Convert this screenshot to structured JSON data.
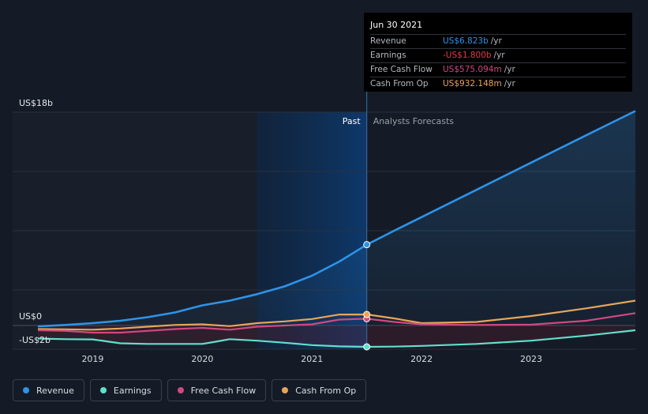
{
  "tooltip": {
    "date": "Jun 30 2021",
    "rows": [
      {
        "label": "Revenue",
        "value": "US$6.823b",
        "unit": "/yr",
        "color": "#2e93e8"
      },
      {
        "label": "Earnings",
        "value": "-US$1.800b",
        "unit": "/yr",
        "color": "#e8394d"
      },
      {
        "label": "Free Cash Flow",
        "value": "US$575.094m",
        "unit": "/yr",
        "color": "#d0487f"
      },
      {
        "label": "Cash From Op",
        "value": "US$932.148m",
        "unit": "/yr",
        "color": "#e6a55c"
      }
    ]
  },
  "legend": [
    {
      "label": "Revenue",
      "color": "#2e93e8"
    },
    {
      "label": "Earnings",
      "color": "#5fe0cc"
    },
    {
      "label": "Free Cash Flow",
      "color": "#d0487f"
    },
    {
      "label": "Cash From Op",
      "color": "#e6a55c"
    }
  ],
  "chart_data": {
    "type": "line",
    "title": "",
    "y_tick_labels": [
      "US$18b",
      "US$0",
      "-US$2b"
    ],
    "ylim": [
      -2,
      18
    ],
    "xlim": [
      2018.5,
      2023.95
    ],
    "x_ticks": [
      2019,
      2020,
      2021,
      2022,
      2023
    ],
    "x_tick_labels": [
      "2019",
      "2020",
      "2021",
      "2022",
      "2023"
    ],
    "past_label": "Past",
    "forecast_label": "Analysts Forecasts",
    "divider_x": 2021.5,
    "past_region_start": 2020.5,
    "units": "US$ billions",
    "series": [
      {
        "name": "Revenue",
        "color": "#2e93e8",
        "x": [
          2018.5,
          2018.75,
          2019.0,
          2019.25,
          2019.5,
          2019.75,
          2020.0,
          2020.25,
          2020.5,
          2020.75,
          2021.0,
          2021.25,
          2021.5,
          2021.75,
          2022.0,
          2022.5,
          2023.0,
          2023.5,
          2023.95
        ],
        "y": [
          -0.07,
          0.05,
          0.2,
          0.4,
          0.7,
          1.1,
          1.7,
          2.1,
          2.65,
          3.3,
          4.2,
          5.4,
          6.823,
          8.0,
          9.15,
          11.45,
          13.75,
          16.05,
          18.1
        ]
      },
      {
        "name": "Earnings",
        "color": "#5fe0cc",
        "x": [
          2018.5,
          2018.75,
          2019.0,
          2019.1,
          2019.25,
          2019.5,
          2019.75,
          2020.0,
          2020.1,
          2020.25,
          2020.5,
          2020.75,
          2021.0,
          2021.25,
          2021.5,
          2021.75,
          2022.0,
          2022.5,
          2023.0,
          2023.5,
          2023.95
        ],
        "y": [
          -1.1,
          -1.15,
          -1.17,
          -1.3,
          -1.5,
          -1.55,
          -1.55,
          -1.55,
          -1.4,
          -1.15,
          -1.28,
          -1.45,
          -1.65,
          -1.76,
          -1.8,
          -1.78,
          -1.72,
          -1.55,
          -1.28,
          -0.85,
          -0.4
        ]
      },
      {
        "name": "Free Cash Flow",
        "color": "#d0487f",
        "x": [
          2018.5,
          2018.75,
          2019.0,
          2019.25,
          2019.5,
          2019.75,
          2020.0,
          2020.25,
          2020.5,
          2020.75,
          2021.0,
          2021.25,
          2021.5,
          2021.75,
          2022.0,
          2022.5,
          2023.0,
          2023.5,
          2023.95
        ],
        "y": [
          -0.4,
          -0.45,
          -0.6,
          -0.6,
          -0.45,
          -0.3,
          -0.2,
          -0.35,
          -0.1,
          0.0,
          0.1,
          0.5,
          0.575,
          0.3,
          0.1,
          0.05,
          0.07,
          0.4,
          1.05
        ]
      },
      {
        "name": "Cash From Op",
        "color": "#e6a55c",
        "x": [
          2018.5,
          2018.75,
          2019.0,
          2019.25,
          2019.5,
          2019.75,
          2020.0,
          2020.25,
          2020.5,
          2020.75,
          2021.0,
          2021.25,
          2021.5,
          2021.75,
          2022.0,
          2022.5,
          2023.0,
          2023.5,
          2023.95
        ],
        "y": [
          -0.3,
          -0.32,
          -0.35,
          -0.25,
          -0.1,
          0.05,
          0.1,
          -0.05,
          0.2,
          0.35,
          0.55,
          0.93,
          0.932,
          0.6,
          0.2,
          0.3,
          0.8,
          1.45,
          2.1
        ]
      }
    ]
  }
}
